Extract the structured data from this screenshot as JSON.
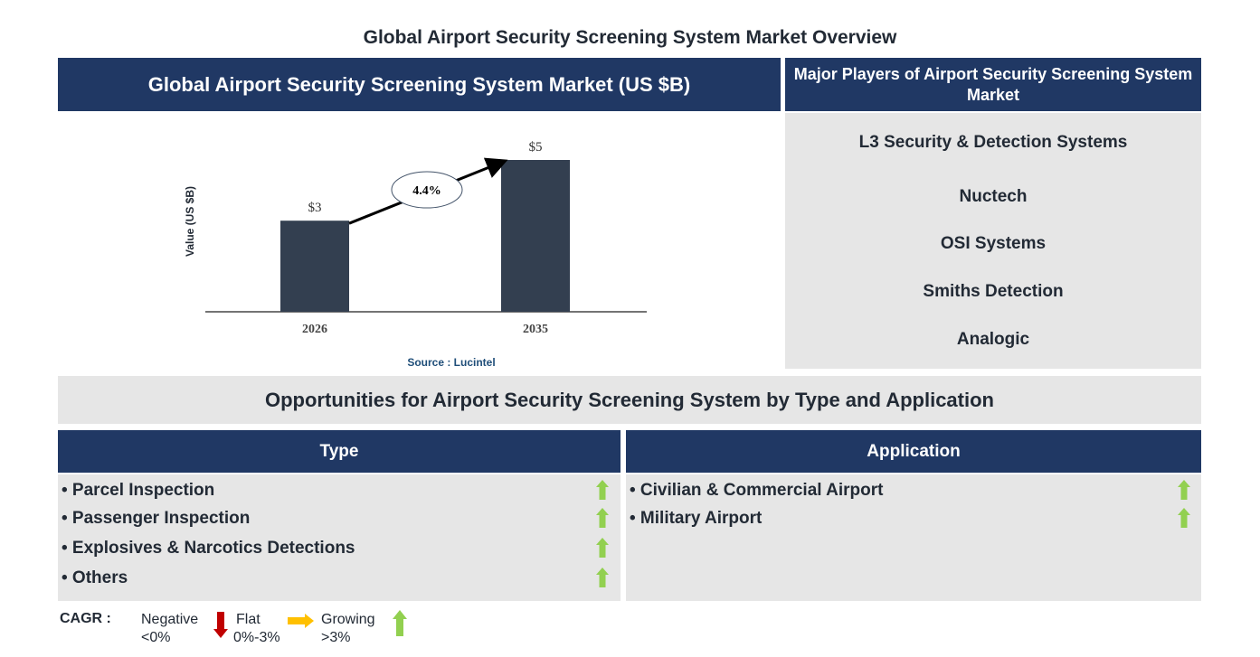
{
  "title": "Global Airport Security Screening System Market Overview",
  "chart_header": "Global Airport Security Screening System Market (US $B)",
  "chart_data": {
    "type": "bar",
    "categories": [
      "2026",
      "2035"
    ],
    "values": [
      3,
      5
    ],
    "data_labels": [
      "$3",
      "$5"
    ],
    "ylabel": "Value (US $B)",
    "ylim": [
      0,
      5
    ],
    "annotation": "4.4%",
    "grid": false,
    "bar_color": "#333f50"
  },
  "source": "Source : Lucintel",
  "players": {
    "header": "Major Players of Airport Security Screening System Market",
    "items": [
      "L3 Security & Detection Systems",
      "Nuctech",
      "OSI Systems",
      "Smiths Detection",
      "Analogic"
    ]
  },
  "opportunities": {
    "header": "Opportunities for Airport Security Screening System by Type and Application",
    "type": {
      "header": "Type",
      "items": [
        {
          "label": "• Parcel Inspection",
          "trend": "growing"
        },
        {
          "label": "• Passenger Inspection",
          "trend": "growing"
        },
        {
          "label": "• Explosives & Narcotics Detections",
          "trend": "growing"
        },
        {
          "label": "• Others",
          "trend": "growing"
        }
      ]
    },
    "application": {
      "header": "Application",
      "items": [
        {
          "label": "• Civilian & Commercial Airport",
          "trend": "growing"
        },
        {
          "label": "• Military Airport",
          "trend": "growing"
        }
      ]
    }
  },
  "legend": {
    "label": "CAGR :",
    "negative": "Negative",
    "negative_range": "<0%",
    "flat": "Flat",
    "flat_range": "0%-3%",
    "growing": "Growing",
    "growing_range": ">3%"
  },
  "colors": {
    "navy": "#203864",
    "panel": "#e6e6e6",
    "bar": "#333f50",
    "growing": "#92d050",
    "flat": "#ffc000",
    "negative": "#c00000"
  }
}
